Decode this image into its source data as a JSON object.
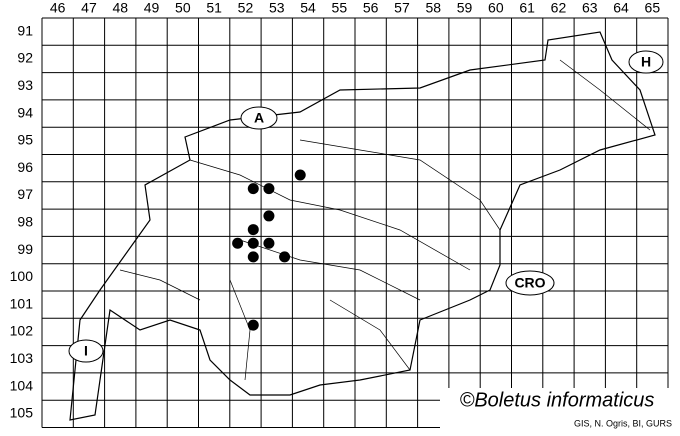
{
  "grid": {
    "columns": [
      46,
      47,
      48,
      49,
      50,
      51,
      52,
      53,
      54,
      55,
      56,
      57,
      58,
      59,
      60,
      61,
      62,
      63,
      64,
      65
    ],
    "rows": [
      91,
      92,
      93,
      94,
      95,
      96,
      97,
      98,
      99,
      100,
      101,
      102,
      103,
      104,
      105
    ]
  },
  "records": {
    "x": [
      53.75,
      52.25,
      52.75,
      52.75,
      52.25,
      51.75,
      52.25,
      52.75,
      52.25,
      53.25,
      52.25
    ],
    "y": [
      96.25,
      96.75,
      96.75,
      97.75,
      98.25,
      98.75,
      98.75,
      98.75,
      99.25,
      99.25,
      101.75
    ]
  },
  "countries": [
    "A",
    "H",
    "CRO",
    "I"
  ],
  "credit": "©Boletus informaticus",
  "source": "GIS, N. Ogris, BI, GURS"
}
